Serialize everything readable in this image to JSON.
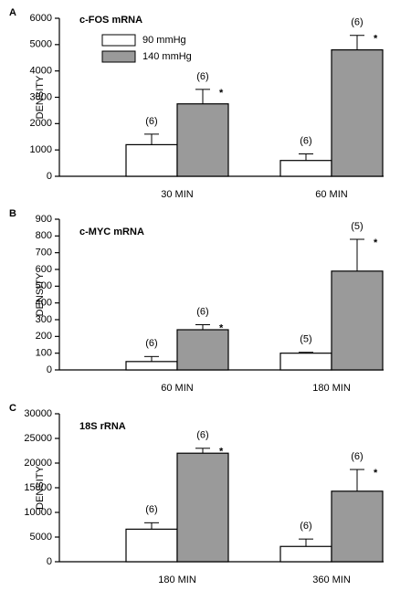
{
  "chart_data": [
    {
      "type": "bar",
      "panel": "A",
      "title": "c-FOS mRNA",
      "ylabel": "DENSITY",
      "categories": [
        "30 MIN",
        "60 MIN"
      ],
      "series": [
        {
          "name": "90 mmHg",
          "color": "#ffffff",
          "values": [
            1200,
            600
          ],
          "errors": [
            400,
            250
          ],
          "n_labels": [
            "(6)",
            "(6)"
          ]
        },
        {
          "name": "140 mmHg",
          "color": "#9a9a9a",
          "values": [
            2750,
            4800
          ],
          "errors": [
            550,
            550
          ],
          "n_labels": [
            "(6)",
            "(6)"
          ],
          "significance": [
            "*",
            "*"
          ]
        }
      ],
      "ylim": [
        0,
        6000
      ],
      "yticks": [
        0,
        1000,
        2000,
        3000,
        4000,
        5000,
        6000
      ]
    },
    {
      "type": "bar",
      "panel": "B",
      "title": "c-MYC mRNA",
      "ylabel": "DENSITY",
      "categories": [
        "60 MIN",
        "180 MIN"
      ],
      "series": [
        {
          "color": "#ffffff",
          "values": [
            50,
            100
          ],
          "errors": [
            30,
            5
          ],
          "n_labels": [
            "(6)",
            "(5)"
          ]
        },
        {
          "color": "#9a9a9a",
          "values": [
            240,
            590
          ],
          "errors": [
            30,
            190
          ],
          "n_labels": [
            "(6)",
            "(5)"
          ],
          "significance": [
            "*",
            "*"
          ]
        }
      ],
      "ylim": [
        0,
        900
      ],
      "yticks": [
        0,
        100,
        200,
        300,
        400,
        500,
        600,
        700,
        800,
        900
      ]
    },
    {
      "type": "bar",
      "panel": "C",
      "title": "18S rRNA",
      "ylabel": "DENSITY",
      "categories": [
        "180 MIN",
        "360 MIN"
      ],
      "series": [
        {
          "color": "#ffffff",
          "values": [
            6600,
            3100
          ],
          "errors": [
            1300,
            1500
          ],
          "n_labels": [
            "(6)",
            "(6)"
          ]
        },
        {
          "color": "#9a9a9a",
          "values": [
            22000,
            14300
          ],
          "errors": [
            1000,
            4400
          ],
          "n_labels": [
            "(6)",
            "(6)"
          ],
          "significance": [
            "*",
            "*"
          ]
        }
      ],
      "ylim": [
        0,
        30000
      ],
      "yticks": [
        0,
        5000,
        10000,
        15000,
        20000,
        25000,
        30000
      ]
    }
  ]
}
